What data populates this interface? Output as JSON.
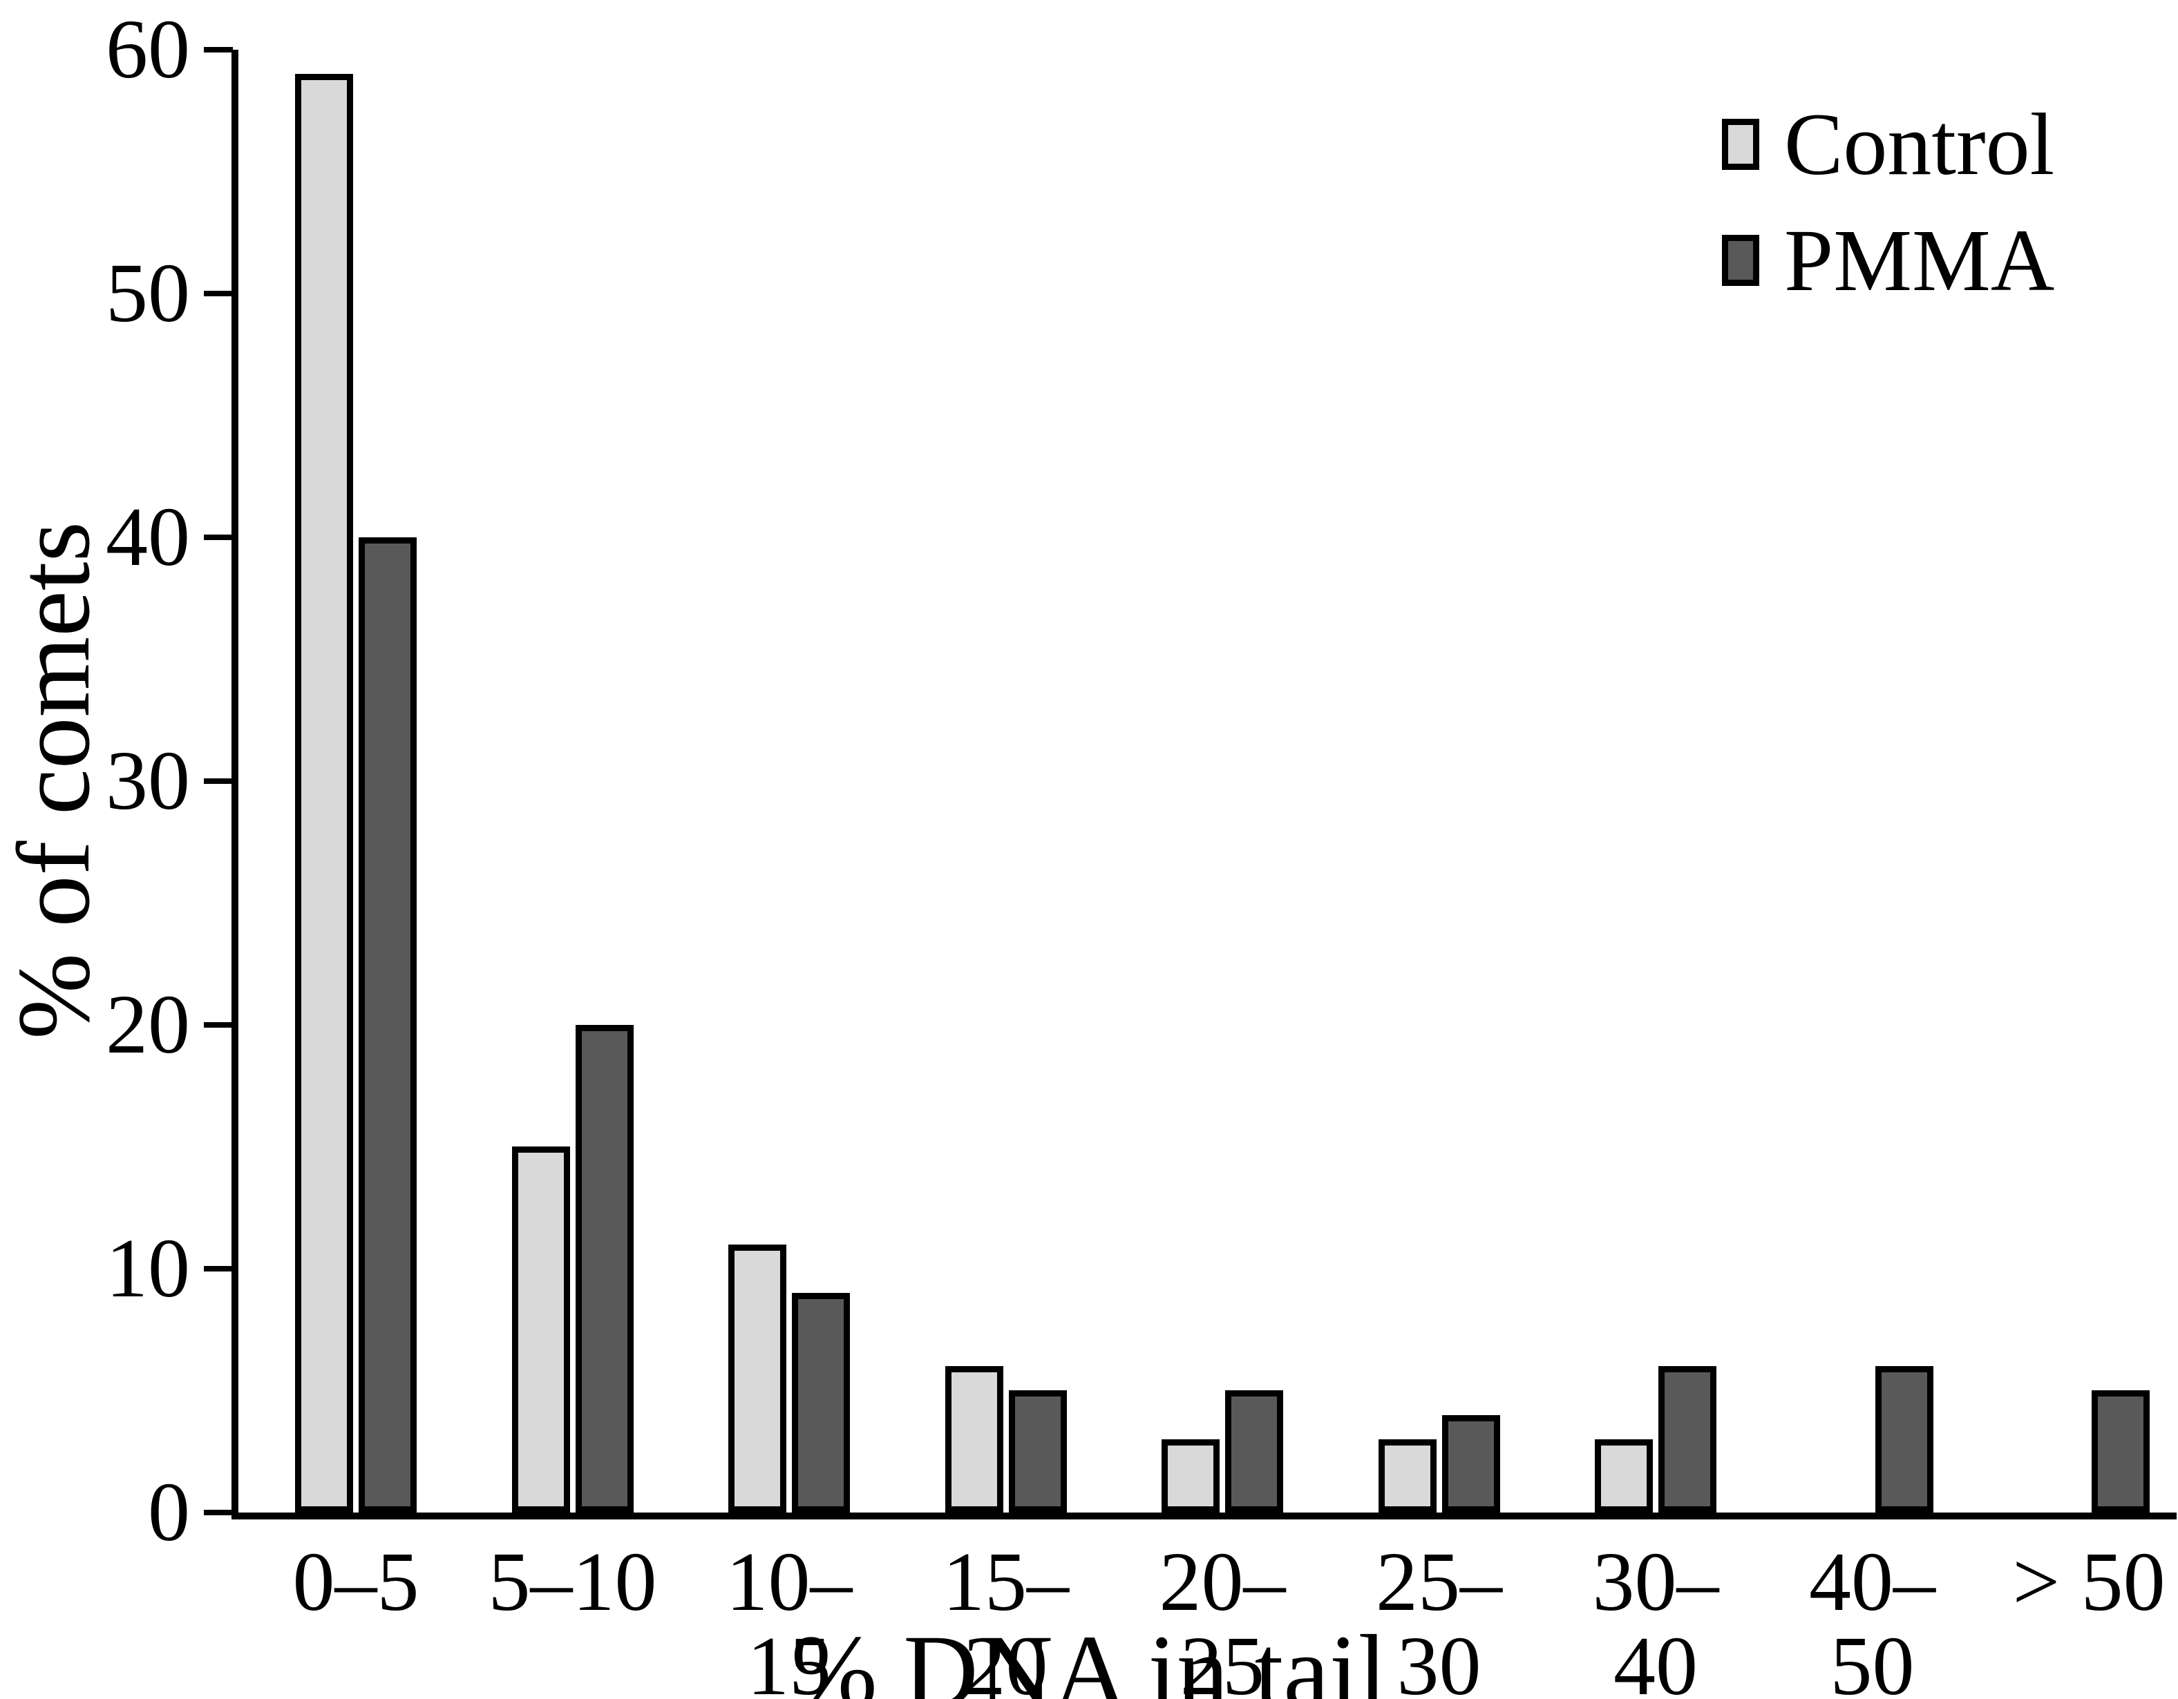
{
  "chart_data": {
    "type": "bar",
    "title": "",
    "categories": [
      "0–5",
      "5–10",
      "10–15",
      "15–20",
      "20–25",
      "25–30",
      "30–40",
      "40–50",
      "> 50"
    ],
    "series": [
      {
        "name": "Control",
        "color": "#d9d9d9",
        "values": [
          59,
          15,
          11,
          6,
          3,
          3,
          3,
          0,
          0
        ]
      },
      {
        "name": "PMMA",
        "color": "#595959",
        "values": [
          40,
          20,
          9,
          5,
          5,
          4,
          6,
          6,
          5
        ]
      }
    ],
    "xlabel": "% DNA in tail",
    "ylabel": "% of comets",
    "ylim": [
      0,
      60
    ],
    "yticks": [
      0,
      10,
      20,
      30,
      40,
      50,
      60
    ],
    "grid": false,
    "legend_position": "top-right",
    "bar_border_color": "#000000",
    "axis_color": "#000000"
  }
}
